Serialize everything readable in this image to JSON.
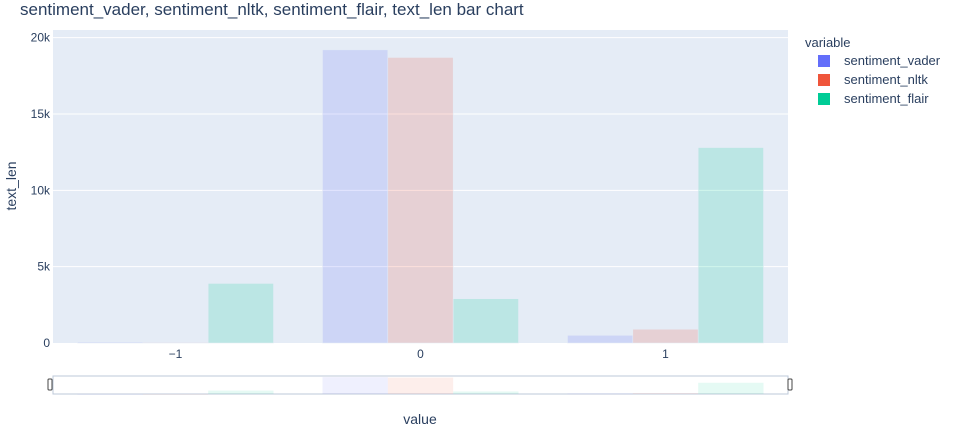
{
  "chart_data": {
    "type": "bar",
    "title": "sentiment_vader, sentiment_nltk, sentiment_flair, text_len bar chart",
    "xlabel": "value",
    "ylabel": "text_len",
    "categories": [
      "−1",
      "0",
      "1"
    ],
    "category_values": [
      -1,
      0,
      1
    ],
    "ylim": [
      0,
      20500
    ],
    "yticks": [
      0,
      5000,
      10000,
      15000,
      20000
    ],
    "ytick_labels": [
      "0",
      "5k",
      "10k",
      "15k",
      "20k"
    ],
    "grid": true,
    "legend_title": "variable",
    "legend_position": "top-right",
    "rangeslider": true,
    "series": [
      {
        "name": "sentiment_vader",
        "color": "#636efa",
        "values": [
          60,
          19200,
          500
        ]
      },
      {
        "name": "sentiment_nltk",
        "color": "#ef553b",
        "values": [
          40,
          18700,
          900
        ]
      },
      {
        "name": "sentiment_flair",
        "color": "#00cc96",
        "values": [
          3900,
          2900,
          12800
        ]
      }
    ]
  }
}
